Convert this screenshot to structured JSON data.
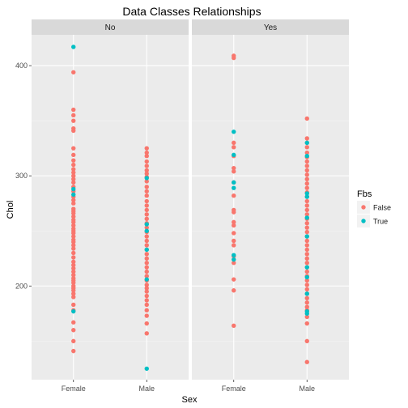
{
  "chart_data": {
    "type": "scatter",
    "title": "Data Classes Relationships",
    "xlabel": "Sex",
    "ylabel": "Chol",
    "facet_labels": [
      "No",
      "Yes"
    ],
    "categories": [
      "Female",
      "Male"
    ],
    "y_ticks": [
      200,
      300,
      400
    ],
    "ylim": [
      115,
      428
    ],
    "grid": true,
    "legend": {
      "title": "Fbs",
      "position": "right",
      "entries": [
        {
          "label": "False",
          "color": "#F8766D"
        },
        {
          "label": "True",
          "color": "#00BFC4"
        }
      ]
    },
    "series": [
      {
        "name": "False",
        "color": "#F8766D",
        "points": [
          {
            "facet": "No",
            "x": "Female",
            "y": [
              394,
              360,
              355,
              350,
              343,
              341,
              325,
              319,
              314,
              310,
              306,
              303,
              300,
              297,
              294,
              290,
              286,
              281,
              278,
              275,
              270,
              268,
              266,
              263,
              260,
              258,
              255,
              252,
              250,
              248,
              245,
              242,
              240,
              237,
              234,
              230,
              226,
              222,
              219,
              216,
              213,
              210,
              207,
              205,
              203,
              200,
              198,
              196,
              193,
              190,
              183,
              178,
              167,
              160,
              150,
              141
            ]
          },
          {
            "facet": "No",
            "x": "Male",
            "y": [
              325,
              321,
              318,
              313,
              309,
              305,
              302,
              299,
              295,
              290,
              286,
              282,
              277,
              273,
              269,
              265,
              261,
              257,
              253,
              249,
              245,
              241,
              237,
              233,
              229,
              225,
              221,
              217,
              213,
              209,
              205,
              201,
              198,
              195,
              191,
              187,
              183,
              178,
              173,
              166,
              157
            ]
          },
          {
            "facet": "Yes",
            "x": "Female",
            "y": [
              409,
              407,
              330,
              326,
              318,
              307,
              304,
              294,
              282,
              269,
              267,
              258,
              255,
              248,
              241,
              237,
              227,
              221,
              206,
              196,
              164
            ]
          },
          {
            "facet": "Yes",
            "x": "Male",
            "y": [
              352,
              334,
              330,
              326,
              321,
              317,
              313,
              309,
              305,
              301,
              297,
              293,
              289,
              285,
              281,
              277,
              273,
              269,
              265,
              261,
              257,
              253,
              249,
              245,
              241,
              237,
              233,
              229,
              225,
              221,
              217,
              213,
              209,
              205,
              201,
              197,
              193,
              189,
              185,
              181,
              178,
              172,
              166,
              150,
              131
            ]
          }
        ]
      },
      {
        "name": "True",
        "color": "#00BFC4",
        "points": [
          {
            "facet": "No",
            "x": "Female",
            "y": [
              417,
              288,
              283,
              177
            ]
          },
          {
            "facet": "No",
            "x": "Male",
            "y": [
              298,
              256,
              250,
              233,
              206,
              125
            ]
          },
          {
            "facet": "Yes",
            "x": "Female",
            "y": [
              340,
              319,
              294,
              289,
              228,
              224
            ]
          },
          {
            "facet": "Yes",
            "x": "Male",
            "y": [
              330,
              318,
              284,
              281,
              262,
              245,
              217,
              208,
              193,
              177,
              175
            ]
          }
        ]
      }
    ]
  }
}
